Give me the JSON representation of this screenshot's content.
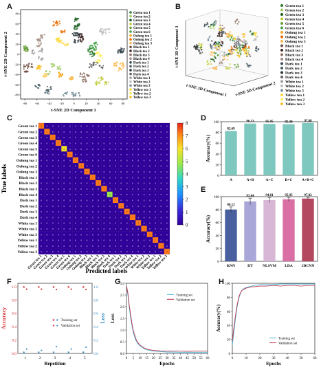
{
  "labels": {
    "a": "A",
    "b": "B",
    "c": "C",
    "d": "D",
    "e": "E",
    "f": "F",
    "g": "G",
    "h": "H"
  },
  "tsne2d": {
    "xlabel": "t-SNE 2D Component 1",
    "ylabel": "t-SNE 2D Component 2",
    "xticks": [
      "-80",
      "-60",
      "-40",
      "-20",
      "0",
      "20",
      "40",
      "60",
      "80"
    ],
    "yticks": [
      "80",
      "60",
      "40",
      "20",
      "0",
      "-20",
      "-40",
      "-60",
      "-80"
    ]
  },
  "tsne3d": {
    "xlabel": "t-SNE 3D Component 1",
    "ylabel": "t-SNE 3D Component 2",
    "zlabel": "t-SNE 3D Component 3"
  },
  "classes": [
    "Green tea 1",
    "Green tea 2",
    "Green tea 3",
    "Green tea 4",
    "Green tea 5",
    "Green tea 6",
    "Oolong tea 1",
    "Oolong tea 2",
    "Oolong tea 3",
    "Black tea 1",
    "Black tea 2",
    "Black tea 3",
    "Black tea 4",
    "Dark tea 1",
    "Dark tea 2",
    "Dark tea 3",
    "Dark tea 4",
    "White tea 1",
    "White tea 2",
    "White tea 3",
    "Yellow tea 1",
    "Yellow tea 2",
    "Yellow tea 3"
  ],
  "class_colors": [
    "#2e7d32",
    "#9ccc65",
    "#1b5e20",
    "#c0ca33",
    "#689f38",
    "#43a047",
    "#f9a825",
    "#ef6c00",
    "#ffb74d",
    "#6d4c41",
    "#3e2723",
    "#8d6e63",
    "#a1887f",
    "#37474f",
    "#455a64",
    "#263238",
    "#616161",
    "#9e9e9e",
    "#bdbdbd",
    "#78909c",
    "#fdd835",
    "#ffee58",
    "#fbc02d"
  ],
  "confusion": {
    "xlabel": "Predicted labels",
    "ylabel": "True labels",
    "cbar_ticks": [
      "0",
      "1",
      "2",
      "3",
      "4",
      "5",
      "6",
      "7",
      "8"
    ]
  },
  "chart_data": [
    {
      "type": "bar",
      "panel": "D",
      "ylabel": "Accuracy(%)",
      "categories": [
        "A",
        "A+B",
        "A+C",
        "B+C",
        "A+B+C"
      ],
      "values": [
        82.69,
        96.53,
        95.95,
        95.38,
        97.68
      ],
      "value_labels": [
        "82.69",
        "96.53",
        "95.95",
        "95.38",
        "97.68"
      ],
      "ylim": [
        0,
        100
      ],
      "yticks": [
        "0",
        "20",
        "40",
        "60",
        "80",
        "100"
      ],
      "color": "#7fc8c0"
    },
    {
      "type": "bar",
      "panel": "E",
      "ylabel": "Accuracy(%)",
      "categories": [
        "KNN",
        "DT",
        "NLSVM",
        "LDA",
        "1DCNN"
      ],
      "values": [
        80.12,
        92.64,
        94.81,
        95.95,
        97.02
      ],
      "value_labels": [
        "80.12",
        "92.64",
        "94.81",
        "95.95",
        "97.02"
      ],
      "errors": [
        4,
        5,
        4,
        3,
        2
      ],
      "ylim": [
        0,
        100
      ],
      "yticks": [
        "0",
        "20",
        "40",
        "60",
        "80",
        "100"
      ],
      "colors": [
        "#4a5f9f",
        "#a9a6d8",
        "#d8b7d6",
        "#d96fa5",
        "#b4485f"
      ]
    },
    {
      "type": "scatter",
      "panel": "F",
      "xlabel": "Repetition",
      "ylabel_left": "Accuracy",
      "ylabel_right": "Loss",
      "x": [
        1,
        2,
        3,
        4,
        5
      ],
      "xticks": [
        "1",
        "2",
        "3",
        "4",
        "5"
      ],
      "yticks": [
        "0.0",
        "0.2",
        "0.4",
        "0.6",
        "0.8",
        "1.0"
      ],
      "ylim": [
        0,
        1.05
      ],
      "series": [
        {
          "name": "Training set",
          "acc": [
            1.0,
            1.0,
            1.0,
            1.0,
            1.0
          ],
          "loss": [
            0.02,
            0.02,
            0.02,
            0.02,
            0.02
          ]
        },
        {
          "name": "Validation set",
          "acc": [
            0.97,
            0.97,
            0.96,
            0.97,
            0.96
          ],
          "loss": [
            0.07,
            0.05,
            0.11,
            0.07,
            0.1
          ]
        }
      ]
    },
    {
      "type": "line",
      "panel": "G",
      "xlabel": "Epochs",
      "ylabel": "Loss",
      "xlim": [
        0,
        60
      ],
      "ylim": [
        0,
        3.0
      ],
      "xticks": [
        "0",
        "5",
        "10",
        "15",
        "20",
        "25",
        "30",
        "35",
        "40",
        "45",
        "50",
        "55",
        "60"
      ],
      "yticks": [
        "0.0",
        "0.5",
        "1.0",
        "1.5",
        "2.0",
        "2.5",
        "3.0"
      ],
      "series": [
        {
          "name": "Training set",
          "color": "#4ab3d4",
          "x": [
            0,
            1,
            2,
            3,
            4,
            5,
            6,
            7,
            8,
            10,
            12,
            14,
            16,
            18,
            20,
            25,
            30,
            35,
            40,
            45,
            50,
            55,
            60
          ],
          "y": [
            2.95,
            2.5,
            2.0,
            1.55,
            1.2,
            0.9,
            0.7,
            0.55,
            0.45,
            0.32,
            0.24,
            0.18,
            0.14,
            0.12,
            0.1,
            0.08,
            0.06,
            0.06,
            0.05,
            0.05,
            0.05,
            0.05,
            0.05
          ]
        },
        {
          "name": "Validation set",
          "color": "#c2384c",
          "x": [
            0,
            1,
            2,
            3,
            4,
            5,
            6,
            7,
            8,
            10,
            12,
            14,
            16,
            18,
            20,
            25,
            30,
            35,
            40,
            45,
            50,
            55,
            60
          ],
          "y": [
            2.9,
            2.6,
            2.1,
            1.7,
            1.3,
            1.0,
            0.8,
            0.62,
            0.5,
            0.36,
            0.27,
            0.21,
            0.17,
            0.15,
            0.13,
            0.11,
            0.1,
            0.1,
            0.1,
            0.09,
            0.1,
            0.1,
            0.1
          ]
        }
      ]
    },
    {
      "type": "line",
      "panel": "H",
      "xlabel": "Epochs",
      "ylabel": "Accuracy(%)",
      "xlim": [
        0,
        60
      ],
      "ylim": [
        0,
        100
      ],
      "xticks": [
        "0",
        "10",
        "20",
        "30",
        "40",
        "50",
        "60"
      ],
      "yticks": [
        "0",
        "20",
        "40",
        "60",
        "80",
        "100"
      ],
      "series": [
        {
          "name": "Training set",
          "color": "#4ab3d4",
          "x": [
            0,
            1,
            2,
            3,
            4,
            5,
            6,
            7,
            8,
            10,
            12,
            14,
            16,
            20,
            25,
            30,
            35,
            40,
            45,
            50,
            55,
            60
          ],
          "y": [
            12,
            28,
            45,
            60,
            72,
            80,
            86,
            90,
            92,
            94,
            95,
            96,
            97,
            98,
            98,
            98,
            99,
            99,
            99,
            99,
            99,
            99
          ]
        },
        {
          "name": "Validation set",
          "color": "#c2384c",
          "x": [
            0,
            1,
            2,
            3,
            4,
            5,
            6,
            7,
            8,
            10,
            12,
            14,
            16,
            20,
            25,
            30,
            35,
            40,
            45,
            50,
            55,
            60
          ],
          "y": [
            18,
            35,
            50,
            64,
            74,
            82,
            87,
            90,
            91,
            93,
            94,
            95,
            95,
            96,
            96,
            97,
            96,
            97,
            97,
            96,
            97,
            97
          ]
        }
      ]
    }
  ]
}
